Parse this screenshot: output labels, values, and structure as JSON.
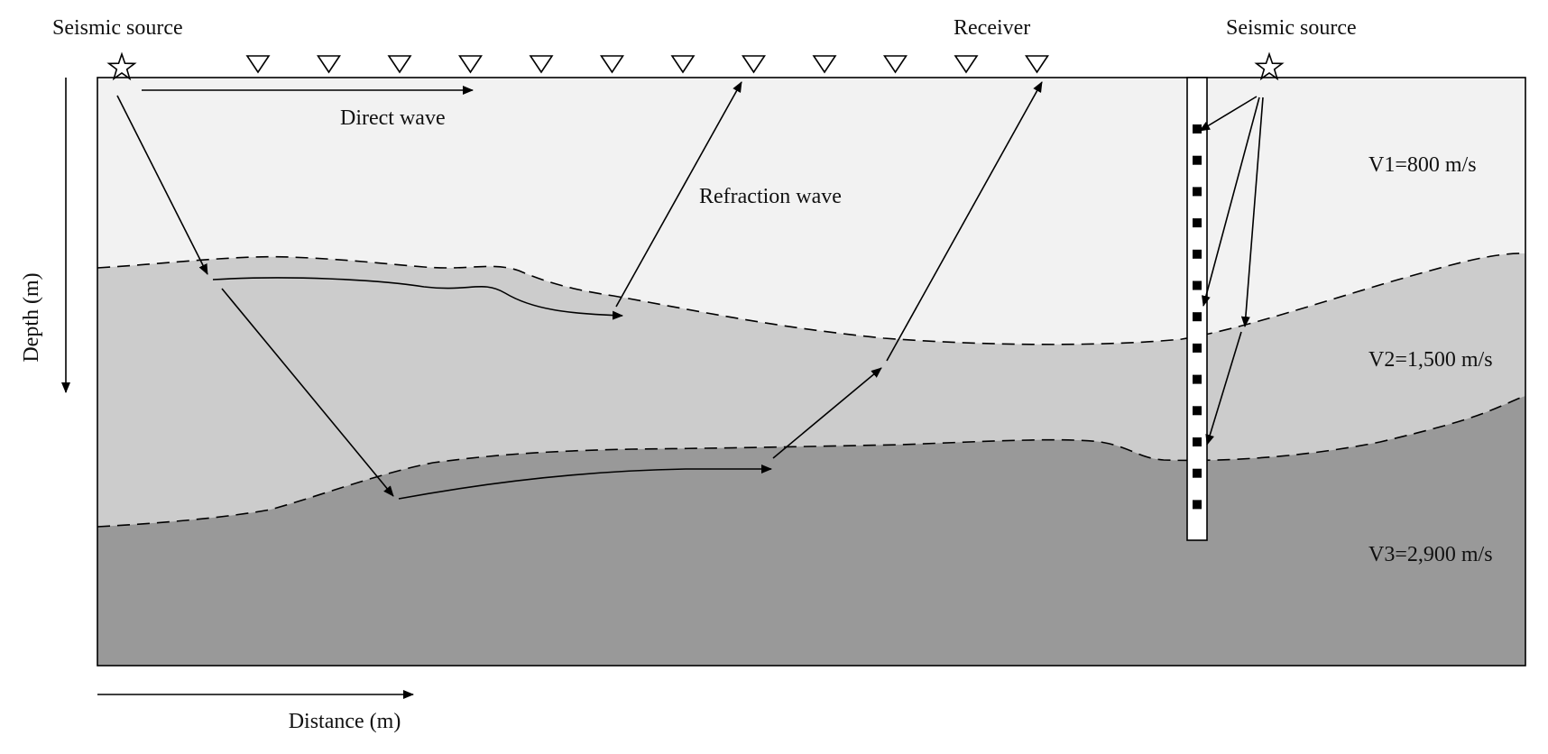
{
  "labels": {
    "source_left": "Seismic source",
    "source_right": "Seismic source",
    "receiver": "Receiver",
    "direct_wave": "Direct wave",
    "refraction_wave": "Refraction wave",
    "v1": "V1=800 m/s",
    "v2": "V2=1,500 m/s",
    "v3": "V3=2,900 m/s",
    "depth_axis": "Depth (m)",
    "distance_axis": "Distance (m)"
  },
  "colors": {
    "layer1": "#f2f2f2",
    "layer2": "#cccccc",
    "layer3": "#999999",
    "line": "#000000"
  },
  "icons": {
    "source": "star-outline",
    "receiver": "triangle-down-outline",
    "borehole_sensor": "black-square"
  },
  "receiver_count": 12,
  "borehole_sensor_count": 13
}
